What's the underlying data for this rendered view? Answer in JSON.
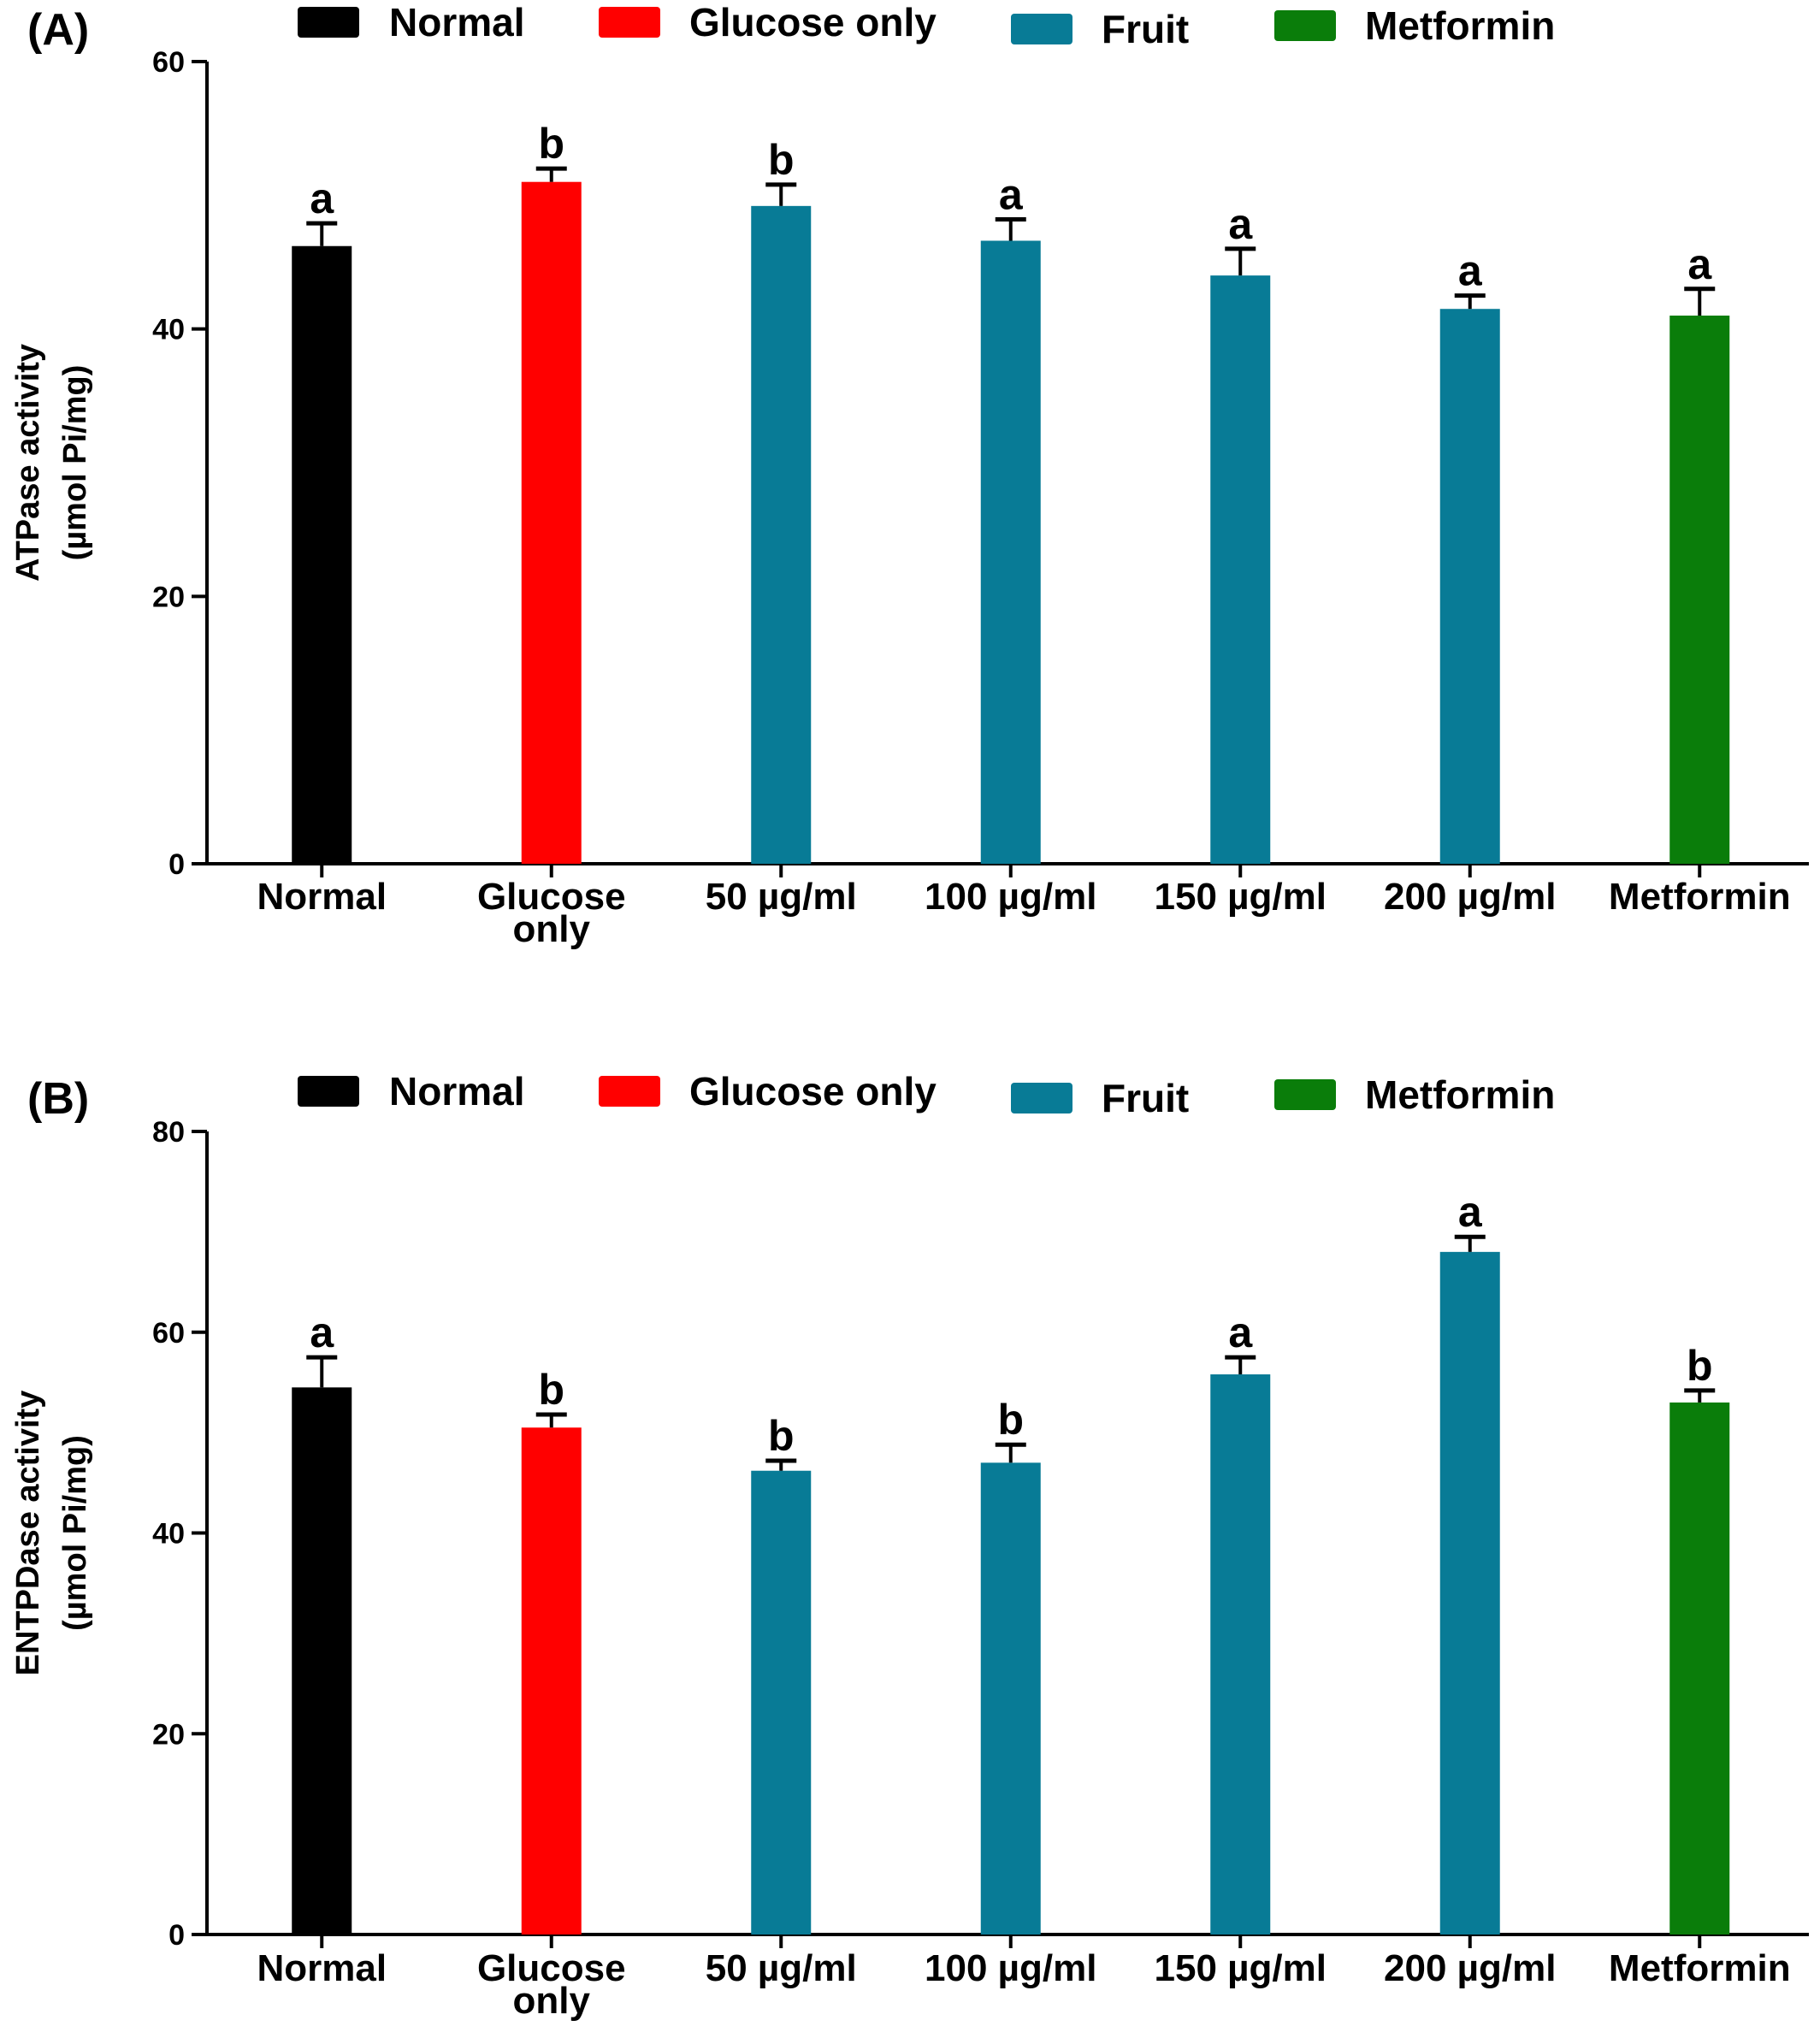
{
  "chart_data": [
    {
      "type": "bar",
      "panel_label": "(A)",
      "legend": [
        {
          "label": "Normal",
          "color": "#000000"
        },
        {
          "label": "Glucose only",
          "color": "#ff0000"
        },
        {
          "label": "Fruit",
          "color": "#087b96"
        },
        {
          "label": "Metformin",
          "color": "#0a7d0a"
        }
      ],
      "ylabel": [
        "ATPase activity",
        "(µmol Pi/mg)"
      ],
      "ylim": [
        0,
        60
      ],
      "yticks": [
        "0",
        "20",
        "40",
        "60"
      ],
      "categories": [
        [
          "Normal"
        ],
        [
          "Glucose",
          "only"
        ],
        [
          "50 µg/ml"
        ],
        [
          "100 µg/ml"
        ],
        [
          "150 µg/ml"
        ],
        [
          "200 µg/ml"
        ],
        [
          "Metformin"
        ]
      ],
      "values": [
        46.2,
        51.0,
        49.2,
        46.6,
        44.0,
        41.5,
        41.0
      ],
      "errors": [
        1.7,
        1.0,
        1.6,
        1.6,
        2.0,
        1.0,
        2.0
      ],
      "letters": [
        "a",
        "b",
        "b",
        "a",
        "a",
        "a",
        "a"
      ],
      "bar_colors": [
        "#000000",
        "#ff0000",
        "#087b96",
        "#087b96",
        "#087b96",
        "#087b96",
        "#0a7d0a"
      ]
    },
    {
      "type": "bar",
      "panel_label": "(B)",
      "legend": [
        {
          "label": "Normal",
          "color": "#000000"
        },
        {
          "label": "Glucose only",
          "color": "#ff0000"
        },
        {
          "label": "Fruit",
          "color": "#087b96"
        },
        {
          "label": "Metformin",
          "color": "#0a7d0a"
        }
      ],
      "ylabel": [
        "ENTPDase activity",
        "(µmol Pi/mg)"
      ],
      "ylim": [
        0,
        80
      ],
      "yticks": [
        "0",
        "20",
        "40",
        "60",
        "80"
      ],
      "categories": [
        [
          "Normal"
        ],
        [
          "Glucose",
          "only"
        ],
        [
          "50 µg/ml"
        ],
        [
          "100 µg/ml"
        ],
        [
          "150 µg/ml"
        ],
        [
          "200 µg/ml"
        ],
        [
          "Metformin"
        ]
      ],
      "values": [
        54.5,
        50.5,
        46.2,
        47.0,
        55.8,
        68.0,
        53.0
      ],
      "errors": [
        3.0,
        1.3,
        1.0,
        1.8,
        1.7,
        1.5,
        1.2
      ],
      "letters": [
        "a",
        "b",
        "b",
        "b",
        "a",
        "a",
        "b"
      ],
      "bar_colors": [
        "#000000",
        "#ff0000",
        "#087b96",
        "#087b96",
        "#087b96",
        "#087b96",
        "#0a7d0a"
      ]
    }
  ]
}
